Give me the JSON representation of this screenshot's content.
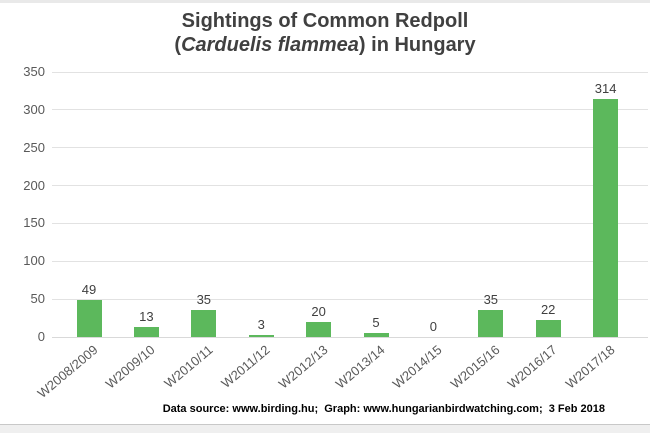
{
  "title": {
    "line1": "Sightings of Common Redpoll",
    "line2_pre": "(",
    "line2_italic": "Carduelis flammea",
    "line2_post": ") in Hungary"
  },
  "footer": {
    "text": "Data source: www.birding.hu;  Graph: www.hungarianbirdwatching.com;  3 Feb 2018"
  },
  "colors": {
    "bar": "#5cb85c",
    "gridline": "#e2e2e2",
    "axis_line": "#d9d9d9",
    "title_text": "#404040",
    "axis_text": "#595959",
    "value_label_text": "#404040",
    "footer_text": "#000000"
  },
  "chart_data": {
    "type": "bar",
    "title": "Sightings of Common Redpoll (Carduelis flammea) in Hungary",
    "categories": [
      "W2008/2009",
      "W2009/10",
      "W2010/11",
      "W2011/12",
      "W2012/13",
      "W2013/14",
      "W2014/15",
      "W2015/16",
      "W2016/17",
      "W2017/18"
    ],
    "values": [
      49,
      13,
      35,
      3,
      20,
      5,
      0,
      35,
      22,
      314
    ],
    "xlabel": "",
    "ylabel": "",
    "ylim": [
      0,
      350
    ],
    "ytick_step": 50,
    "yticks": [
      0,
      50,
      100,
      150,
      200,
      250,
      300,
      350
    ],
    "grid": true,
    "data_labels": true,
    "legend": "none",
    "bar_color": "#5cb85c"
  }
}
